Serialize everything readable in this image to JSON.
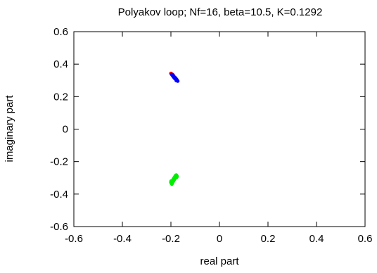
{
  "chart_data": {
    "type": "scatter",
    "title": "Polyakov loop; Nf=16, beta=10.5, K=0.1292",
    "xlabel": "real part",
    "ylabel": "imaginary part",
    "xlim": [
      -0.6,
      0.6
    ],
    "ylim": [
      -0.6,
      0.6
    ],
    "x_ticks": [
      -0.6,
      -0.4,
      -0.2,
      0,
      0.2,
      0.4,
      0.6
    ],
    "y_ticks": [
      -0.6,
      -0.4,
      -0.2,
      0,
      0.2,
      0.4,
      0.6
    ],
    "x_tick_labels": [
      "-0.6",
      "-0.4",
      "-0.2",
      "0",
      "0.2",
      "0.4",
      "0.6"
    ],
    "y_tick_labels": [
      "-0.6",
      "-0.4",
      "-0.2",
      "0",
      "0.2",
      "0.4",
      "0.6"
    ],
    "grid": false,
    "legend": "none",
    "series": [
      {
        "color": "#ff0000",
        "points": [
          [
            -0.2,
            0.343
          ],
          [
            -0.198,
            0.341
          ],
          [
            -0.196,
            0.338
          ],
          [
            -0.193,
            0.336
          ],
          [
            -0.195,
            0.333
          ],
          [
            -0.191,
            0.332
          ]
        ]
      },
      {
        "color": "#0000ff",
        "points": [
          [
            -0.196,
            0.336
          ],
          [
            -0.194,
            0.333
          ],
          [
            -0.192,
            0.33
          ],
          [
            -0.189,
            0.327
          ],
          [
            -0.191,
            0.325
          ],
          [
            -0.187,
            0.322
          ],
          [
            -0.185,
            0.319
          ],
          [
            -0.186,
            0.315
          ],
          [
            -0.183,
            0.312
          ],
          [
            -0.181,
            0.309
          ],
          [
            -0.179,
            0.306
          ],
          [
            -0.176,
            0.303
          ],
          [
            -0.178,
            0.3
          ],
          [
            -0.174,
            0.298
          ],
          [
            -0.172,
            0.296
          ],
          [
            -0.188,
            0.32
          ],
          [
            -0.182,
            0.316
          ],
          [
            -0.18,
            0.311
          ],
          [
            -0.177,
            0.307
          ],
          [
            -0.175,
            0.301
          ]
        ]
      },
      {
        "color": "#00ee00",
        "points": [
          [
            -0.196,
            -0.338
          ],
          [
            -0.198,
            -0.333
          ],
          [
            -0.194,
            -0.33
          ],
          [
            -0.197,
            -0.326
          ],
          [
            -0.192,
            -0.325
          ],
          [
            -0.195,
            -0.321
          ],
          [
            -0.19,
            -0.32
          ],
          [
            -0.193,
            -0.316
          ],
          [
            -0.188,
            -0.315
          ],
          [
            -0.191,
            -0.311
          ],
          [
            -0.186,
            -0.31
          ],
          [
            -0.189,
            -0.306
          ],
          [
            -0.184,
            -0.305
          ],
          [
            -0.187,
            -0.301
          ],
          [
            -0.182,
            -0.3
          ],
          [
            -0.185,
            -0.296
          ],
          [
            -0.18,
            -0.296
          ],
          [
            -0.183,
            -0.292
          ],
          [
            -0.179,
            -0.291
          ],
          [
            -0.181,
            -0.287
          ],
          [
            -0.177,
            -0.287
          ],
          [
            -0.178,
            -0.283
          ],
          [
            -0.2,
            -0.327
          ],
          [
            -0.199,
            -0.32
          ],
          [
            -0.176,
            -0.296
          ],
          [
            -0.175,
            -0.29
          ]
        ]
      }
    ]
  }
}
